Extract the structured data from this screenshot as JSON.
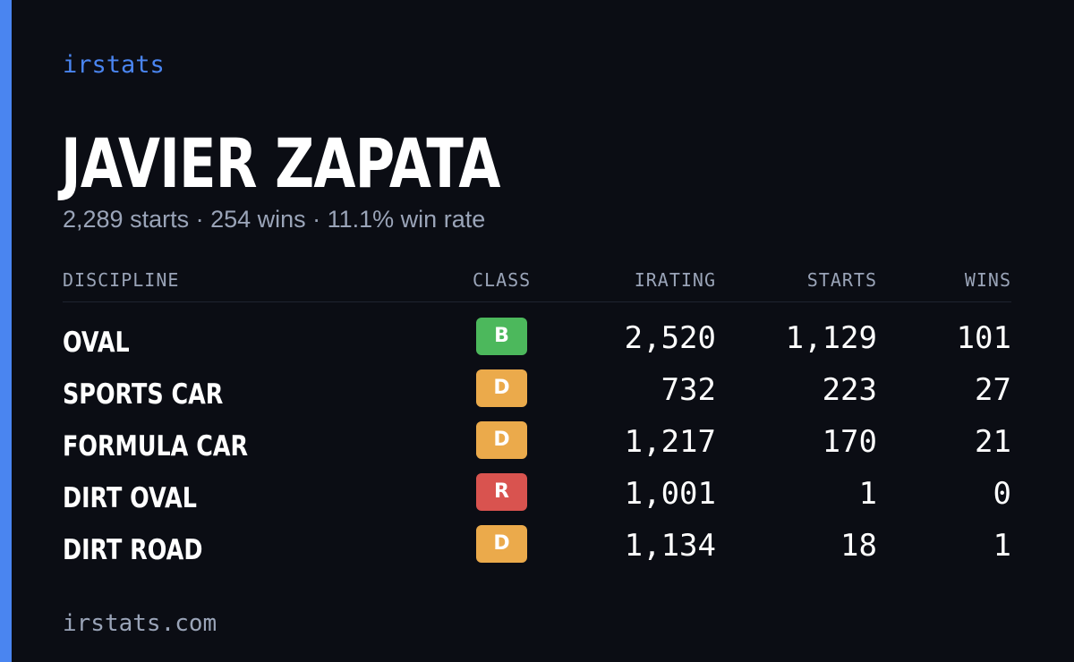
{
  "theme": {
    "background": "#0b0d14",
    "accent": "#4a85f0",
    "muted_text": "#9aa4b8",
    "class_colors": {
      "B": "#4cb85c",
      "D": "#ebaa4b",
      "R": "#d9534f"
    }
  },
  "brand": "irstats",
  "player": {
    "name": "JAVIER ZAPATA",
    "summary": "2,289 starts · 254 wins · 11.1% win rate"
  },
  "table": {
    "headers": {
      "discipline": "DISCIPLINE",
      "class": "CLASS",
      "irating": "IRATING",
      "starts": "STARTS",
      "wins": "WINS"
    },
    "rows": [
      {
        "discipline": "OVAL",
        "class": "B",
        "irating": "2,520",
        "starts": "1,129",
        "wins": "101"
      },
      {
        "discipline": "SPORTS CAR",
        "class": "D",
        "irating": "732",
        "starts": "223",
        "wins": "27"
      },
      {
        "discipline": "FORMULA CAR",
        "class": "D",
        "irating": "1,217",
        "starts": "170",
        "wins": "21"
      },
      {
        "discipline": "DIRT OVAL",
        "class": "R",
        "irating": "1,001",
        "starts": "1",
        "wins": "0"
      },
      {
        "discipline": "DIRT ROAD",
        "class": "D",
        "irating": "1,134",
        "starts": "18",
        "wins": "1"
      }
    ]
  },
  "footer": "irstats.com"
}
